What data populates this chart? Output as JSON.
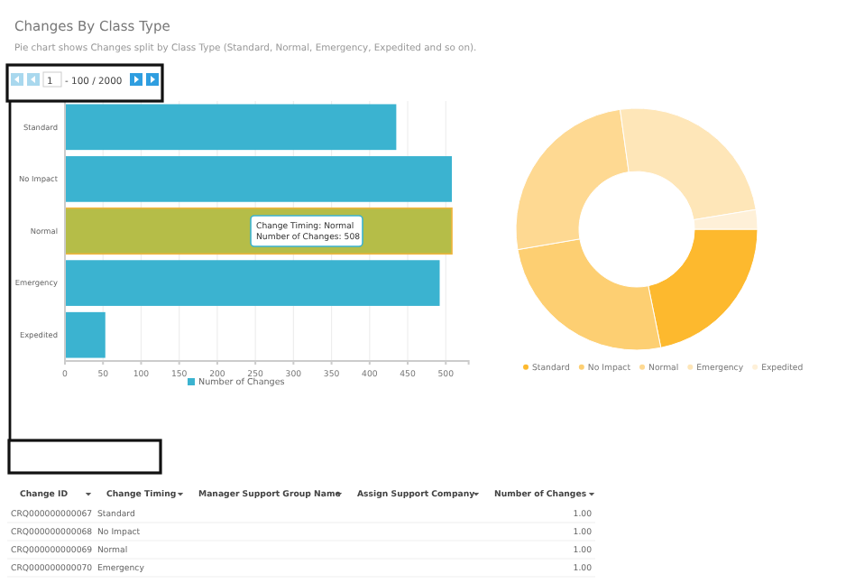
{
  "chart_data": [
    {
      "type": "bar",
      "title": "Changes By Class Type",
      "subtitle": "Pie chart shows Changes split by Class Type (Standard, Normal, Emergency, Expedited and so on).",
      "orientation": "horizontal",
      "categories": [
        "Standard",
        "No Impact",
        "Normal",
        "Emergency",
        "Expedited"
      ],
      "series": [
        {
          "name": "Number of Changes",
          "color": "#3bb3d0",
          "colors": [
            "#3bb3d0",
            "#3bb3d0",
            "#b5bd48",
            "#3bb3d0",
            "#3bb3d0"
          ],
          "values": [
            435,
            508,
            508,
            492,
            53
          ]
        }
      ],
      "xlim": [
        0,
        530
      ],
      "xticks": [
        0,
        50,
        100,
        150,
        200,
        250,
        300,
        350,
        400,
        450,
        500
      ],
      "grid": "x",
      "legend": "bottom",
      "annotations": [
        "Change Timing: Normal\nNumber of Changes: 508",
        "1",
        "- 100 / 2000"
      ]
    },
    {
      "type": "donut",
      "categories": [
        "Standard",
        "No Impact",
        "Normal",
        "Emergency",
        "Expedited"
      ],
      "values": [
        21.8,
        25.5,
        25.5,
        24.6,
        2.6
      ],
      "colors": [
        "#fdb92e",
        "#fdcf72",
        "#fed992",
        "#fee6b8",
        "#fef0d8"
      ],
      "legend": "bottom"
    },
    {
      "type": "other",
      "categories": [
        "Change ID",
        "Change Timing",
        "Manager Support Group Name",
        "Assign Support Company",
        "Number of Changes"
      ],
      "annotations": [
        "CRQ000000000067",
        "Standard",
        null,
        null,
        "1.00",
        "CRQ000000000068",
        "No Impact",
        null,
        null,
        "1.00",
        "CRQ000000000069",
        "Normal",
        null,
        null,
        "1.00",
        "CRQ000000000070",
        "Emergency",
        null,
        null,
        "1.00"
      ]
    }
  ]
}
